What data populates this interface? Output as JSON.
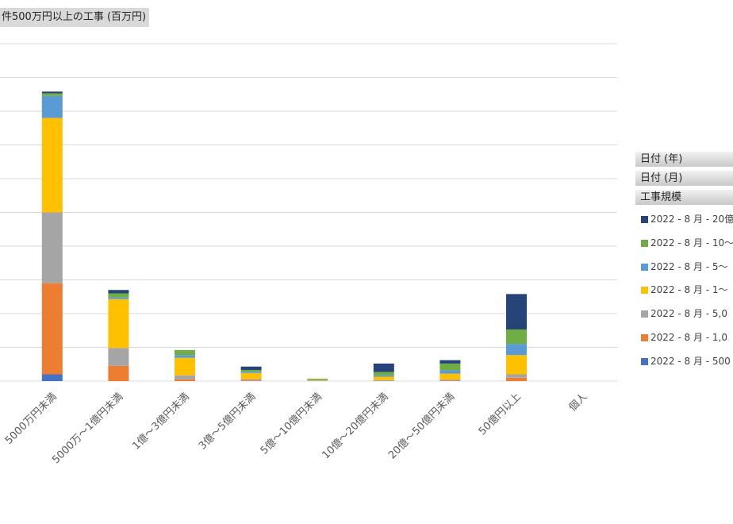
{
  "title": "件500万円以上の工事 (百万円)",
  "field_buttons": [
    "日付 (年)",
    "日付 (月)",
    "工事規模"
  ],
  "legend": [
    {
      "label": "2022 - 8 月 - 20億",
      "color": "#264478"
    },
    {
      "label": "2022 - 8 月 - 10～",
      "color": "#70ad47"
    },
    {
      "label": "2022 - 8 月 - 5～",
      "color": "#5b9bd5"
    },
    {
      "label": "2022 - 8 月 - 1～",
      "color": "#ffc000"
    },
    {
      "label": "2022 - 8 月 - 5,0",
      "color": "#a5a5a5"
    },
    {
      "label": "2022 - 8 月 - 1,0",
      "color": "#ed7d31"
    },
    {
      "label": "2022 - 8 月 - 500",
      "color": "#4472c4"
    }
  ],
  "chart_data": {
    "type": "bar",
    "stacked": true,
    "title": "件500万円以上の工事 (百万円)",
    "categories": [
      "5000万円未満",
      "5000万～1億円未満",
      "1億～3億円未満",
      "3億～5億円未満",
      "5億～10億円未満",
      "10億～20億円未満",
      "20億～50億円未満",
      "50億円以上",
      "個人"
    ],
    "series": [
      {
        "name": "2022 - 8 月 - 500",
        "color": "#4472c4",
        "values": [
          0.2,
          0,
          0,
          0,
          0,
          0,
          0,
          0,
          0
        ]
      },
      {
        "name": "2022 - 8 月 - 1,0",
        "color": "#ed7d31",
        "values": [
          2.7,
          0.45,
          0.05,
          0.02,
          0,
          0,
          0.02,
          0.1,
          0
        ]
      },
      {
        "name": "2022 - 8 月 - 5,0",
        "color": "#a5a5a5",
        "values": [
          2.1,
          0.53,
          0.12,
          0.04,
          0.01,
          0.03,
          0.03,
          0.1,
          0
        ]
      },
      {
        "name": "2022 - 8 月 - 1～",
        "color": "#ffc000",
        "values": [
          2.8,
          1.45,
          0.52,
          0.18,
          0.02,
          0.1,
          0.17,
          0.57,
          0
        ]
      },
      {
        "name": "2022 - 8 月 - 5～",
        "color": "#5b9bd5",
        "values": [
          0.65,
          0.05,
          0.08,
          0.04,
          0.01,
          0.04,
          0.1,
          0.33,
          0
        ]
      },
      {
        "name": "2022 - 8 月 - 10～",
        "color": "#70ad47",
        "values": [
          0.08,
          0.12,
          0.15,
          0.05,
          0.03,
          0.1,
          0.2,
          0.43,
          0
        ]
      },
      {
        "name": "2022 - 8 月 - 20億",
        "color": "#264478",
        "values": [
          0.05,
          0.1,
          0,
          0.1,
          0,
          0.25,
          0.1,
          1.05,
          0
        ]
      }
    ],
    "ylim": [
      0,
      10
    ],
    "grid": true,
    "legend_position": "right"
  }
}
